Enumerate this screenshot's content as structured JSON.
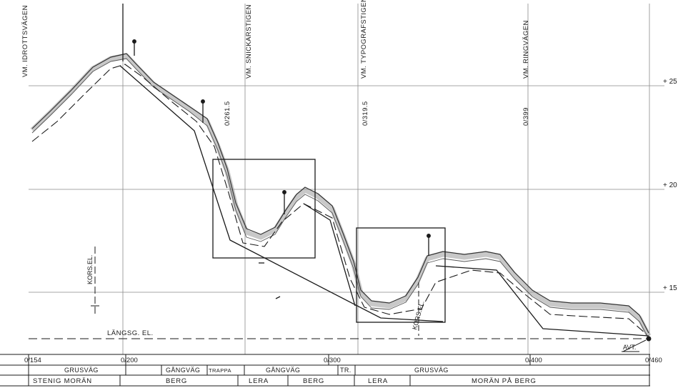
{
  "colors": {
    "ink": "#1a1a1a",
    "grid": "#808080",
    "terrain": "#8a8a8a"
  },
  "streets": [
    {
      "name": "VM. IDROTTSVÄGEN",
      "chainage": ""
    },
    {
      "name": "VM. SNICKARSTIGEN",
      "chainage": "0/261.5"
    },
    {
      "name": "VM. TYPOGRAFSTIGEN",
      "chainage": "0/319.5"
    },
    {
      "name": "VM. RINGVÄGEN",
      "chainage": "0/399"
    }
  ],
  "elevation_labels": [
    "+ 25",
    "+ 20",
    "+ 15"
  ],
  "annotations": {
    "kors_el_left": "KORS.EL.",
    "kors_el_right": "KORS.EL.",
    "langsg_el": "LÄNGSG. EL.",
    "avt": "AVT."
  },
  "chainage_axis": [
    "0/154",
    "0/200",
    "0/300",
    "0/400",
    "0/460"
  ],
  "surface_row": [
    {
      "label": "GRUSVÄG"
    },
    {
      "label": "GÅNGVÄG"
    },
    {
      "label": "TRAPPA"
    },
    {
      "label": "GÅNGVÄG"
    },
    {
      "label": "TR."
    },
    {
      "label": "GRUSVÄG"
    }
  ],
  "ground_row": [
    {
      "label": "STENIG MORÄN"
    },
    {
      "label": "BERG"
    },
    {
      "label": "LERA"
    },
    {
      "label": "BERG"
    },
    {
      "label": "LERA"
    },
    {
      "label": "MORÄN PÅ BERG"
    }
  ]
}
